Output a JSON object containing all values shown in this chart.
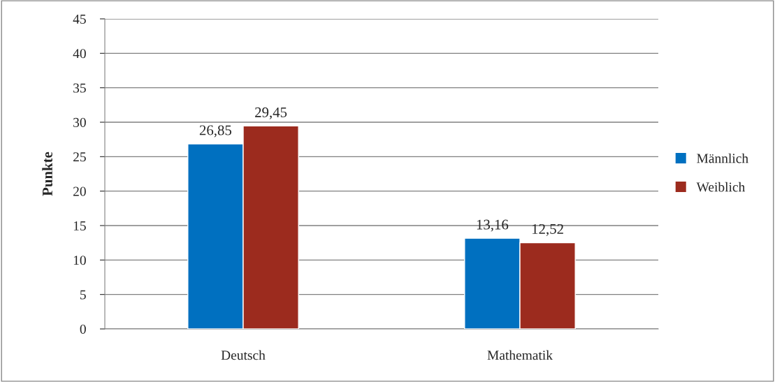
{
  "chart_data": {
    "type": "bar",
    "ylabel": "Punkte",
    "categories": [
      "Deutsch",
      "Mathematik"
    ],
    "series": [
      {
        "name": "Männlich",
        "color": "#0070c0",
        "values": [
          26.85,
          13.16
        ],
        "value_labels": [
          "26,85",
          "13,16"
        ]
      },
      {
        "name": "Weiblich",
        "color": "#9c2b1e",
        "values": [
          29.45,
          12.52
        ],
        "value_labels": [
          "29,45",
          "12,52"
        ]
      }
    ],
    "ylim": [
      0,
      45
    ],
    "yticks": [
      0,
      5,
      10,
      15,
      20,
      25,
      30,
      35,
      40,
      45
    ],
    "grid": "y",
    "legend": "right"
  }
}
